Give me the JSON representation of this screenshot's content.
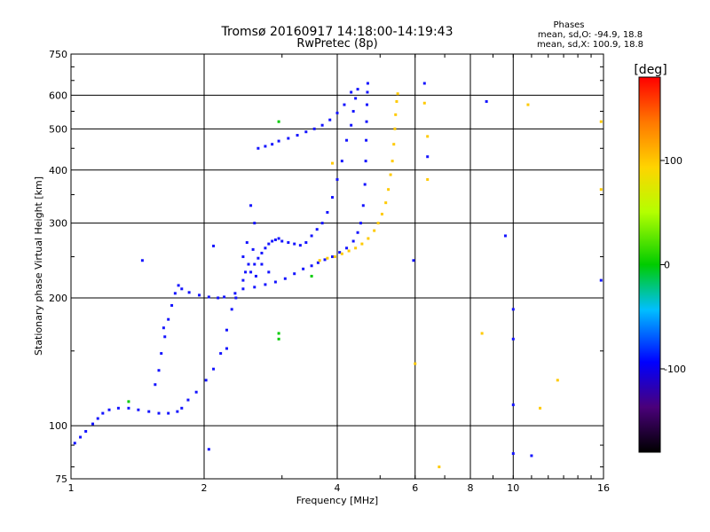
{
  "chart_data": {
    "type": "scatter",
    "title": "Tromsø 20160917 14:18:00-14:19:43",
    "subtitle": "RwPretec (8p)",
    "xlabel": "Frequency [MHz]",
    "ylabel": "Stationary phase Virtual Height [km]",
    "xscale": "log",
    "yscale": "log",
    "xlim": [
      1,
      16
    ],
    "ylim": [
      75,
      750
    ],
    "xticks": [
      1,
      2,
      4,
      6,
      8,
      10,
      16
    ],
    "yticks": [
      75,
      100,
      200,
      300,
      400,
      500,
      600,
      750
    ],
    "grid": true,
    "info": {
      "title": "Phases",
      "line1": "mean, sd,O: -94.9, 18.8",
      "line2": "mean, sd,X: 100.9, 18.8"
    },
    "colorbar": {
      "label": "[deg]",
      "range": [
        -180,
        180
      ],
      "ticks": [
        100,
        0,
        -100
      ],
      "colormap": "rainbow"
    },
    "series": [
      {
        "mode": "O",
        "phase": -100,
        "points": [
          [
            1.02,
            91
          ],
          [
            1.05,
            94
          ],
          [
            1.08,
            97
          ],
          [
            1.12,
            101
          ],
          [
            1.15,
            104
          ],
          [
            1.18,
            107
          ],
          [
            1.22,
            109
          ],
          [
            1.28,
            110
          ],
          [
            1.35,
            110
          ],
          [
            1.42,
            109
          ],
          [
            1.5,
            108
          ],
          [
            1.58,
            107
          ],
          [
            1.66,
            107
          ],
          [
            1.74,
            108
          ],
          [
            1.78,
            110
          ],
          [
            1.84,
            115
          ],
          [
            1.92,
            120
          ],
          [
            2.02,
            128
          ],
          [
            2.1,
            136
          ],
          [
            2.18,
            148
          ],
          [
            2.25,
            168
          ],
          [
            2.31,
            188
          ],
          [
            2.36,
            200
          ],
          [
            1.55,
            125
          ],
          [
            1.58,
            135
          ],
          [
            1.6,
            148
          ],
          [
            1.63,
            162
          ],
          [
            1.66,
            178
          ],
          [
            1.69,
            192
          ],
          [
            1.72,
            205
          ],
          [
            1.75,
            214
          ],
          [
            1.62,
            170
          ],
          [
            1.78,
            210
          ],
          [
            1.85,
            206
          ],
          [
            1.95,
            203
          ],
          [
            2.05,
            201
          ],
          [
            2.15,
            200
          ],
          [
            2.22,
            201
          ],
          [
            2.35,
            205
          ],
          [
            2.45,
            210
          ],
          [
            2.6,
            212
          ],
          [
            2.75,
            215
          ],
          [
            2.9,
            218
          ],
          [
            3.05,
            222
          ],
          [
            3.2,
            228
          ],
          [
            3.35,
            234
          ],
          [
            3.5,
            238
          ],
          [
            3.62,
            242
          ],
          [
            3.75,
            246
          ],
          [
            3.9,
            250
          ],
          [
            4.05,
            256
          ],
          [
            4.2,
            262
          ],
          [
            4.35,
            272
          ],
          [
            4.45,
            285
          ],
          [
            4.52,
            300
          ],
          [
            4.58,
            330
          ],
          [
            4.62,
            370
          ],
          [
            4.64,
            420
          ],
          [
            4.65,
            470
          ],
          [
            4.66,
            520
          ],
          [
            4.67,
            570
          ],
          [
            4.68,
            610
          ],
          [
            4.69,
            640
          ],
          [
            2.45,
            220
          ],
          [
            2.55,
            230
          ],
          [
            2.6,
            240
          ],
          [
            2.65,
            248
          ],
          [
            2.7,
            255
          ],
          [
            2.75,
            262
          ],
          [
            2.8,
            268
          ],
          [
            2.85,
            272
          ],
          [
            2.9,
            274
          ],
          [
            2.95,
            276
          ],
          [
            3.0,
            272
          ],
          [
            3.1,
            270
          ],
          [
            3.2,
            268
          ],
          [
            3.3,
            266
          ],
          [
            3.4,
            270
          ],
          [
            3.5,
            280
          ],
          [
            3.6,
            290
          ],
          [
            3.7,
            300
          ],
          [
            3.8,
            318
          ],
          [
            3.9,
            345
          ],
          [
            4.0,
            380
          ],
          [
            4.1,
            420
          ],
          [
            4.2,
            470
          ],
          [
            4.3,
            510
          ],
          [
            4.35,
            550
          ],
          [
            4.4,
            590
          ],
          [
            4.45,
            620
          ],
          [
            2.65,
            450
          ],
          [
            2.75,
            455
          ],
          [
            2.85,
            460
          ],
          [
            2.95,
            468
          ],
          [
            3.1,
            475
          ],
          [
            3.25,
            483
          ],
          [
            3.4,
            492
          ],
          [
            3.55,
            500
          ],
          [
            3.7,
            510
          ],
          [
            3.85,
            525
          ],
          [
            4.0,
            545
          ],
          [
            4.15,
            570
          ],
          [
            4.3,
            610
          ],
          [
            2.55,
            330
          ],
          [
            2.6,
            300
          ],
          [
            2.5,
            270
          ],
          [
            2.45,
            250
          ],
          [
            2.58,
            260
          ],
          [
            2.7,
            240
          ],
          [
            2.8,
            230
          ],
          [
            2.52,
            240
          ],
          [
            2.48,
            230
          ],
          [
            2.62,
            225
          ],
          [
            1.45,
            245
          ],
          [
            2.1,
            265
          ],
          [
            2.25,
            152
          ],
          [
            2.05,
            88
          ],
          [
            5.95,
            245
          ],
          [
            6.3,
            640
          ],
          [
            6.4,
            430
          ],
          [
            8.7,
            580
          ],
          [
            9.6,
            280
          ],
          [
            10.0,
            188
          ],
          [
            10.0,
            160
          ],
          [
            10.0,
            112
          ],
          [
            10.0,
            86
          ],
          [
            11.0,
            85
          ],
          [
            15.8,
            220
          ]
        ]
      },
      {
        "mode": "X",
        "phase": 100,
        "points": [
          [
            3.65,
            245
          ],
          [
            3.8,
            248
          ],
          [
            3.95,
            250
          ],
          [
            4.1,
            254
          ],
          [
            4.25,
            258
          ],
          [
            4.4,
            262
          ],
          [
            4.55,
            268
          ],
          [
            4.7,
            276
          ],
          [
            4.85,
            288
          ],
          [
            4.95,
            300
          ],
          [
            5.05,
            315
          ],
          [
            5.15,
            335
          ],
          [
            5.22,
            360
          ],
          [
            5.28,
            390
          ],
          [
            5.33,
            420
          ],
          [
            5.37,
            460
          ],
          [
            5.4,
            500
          ],
          [
            5.42,
            540
          ],
          [
            5.45,
            580
          ],
          [
            5.48,
            605
          ],
          [
            3.9,
            415
          ],
          [
            6.0,
            140
          ],
          [
            6.3,
            575
          ],
          [
            6.4,
            480
          ],
          [
            6.4,
            380
          ],
          [
            6.8,
            80
          ],
          [
            8.5,
            165
          ],
          [
            10.8,
            570
          ],
          [
            11.5,
            110
          ],
          [
            12.6,
            128
          ],
          [
            15.8,
            520
          ],
          [
            15.8,
            360
          ]
        ]
      },
      {
        "mode": "other",
        "phase": 0,
        "points": [
          [
            1.35,
            114
          ],
          [
            3.5,
            225
          ],
          [
            2.95,
            520
          ],
          [
            2.95,
            165
          ],
          [
            2.95,
            160
          ]
        ]
      }
    ]
  }
}
